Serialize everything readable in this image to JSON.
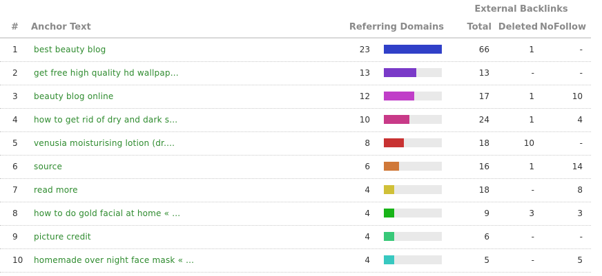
{
  "header": {
    "group": "External Backlinks",
    "num": "#",
    "anchor": "Anchor Text",
    "referring": "Referring Domains",
    "total": "Total",
    "deleted": "Deleted",
    "nofollow": "NoFollow"
  },
  "max_referring": 23,
  "rows": [
    {
      "num": "1",
      "anchor": "best beauty blog",
      "referring": 23,
      "total": "66",
      "deleted": "1",
      "nofollow": "-",
      "color": "#3040c8"
    },
    {
      "num": "2",
      "anchor": "get free high quality hd wallpap...",
      "referring": 13,
      "total": "13",
      "deleted": "-",
      "nofollow": "-",
      "color": "#7a3ac8"
    },
    {
      "num": "3",
      "anchor": "beauty blog online",
      "referring": 12,
      "total": "17",
      "deleted": "1",
      "nofollow": "10",
      "color": "#c03ec8"
    },
    {
      "num": "4",
      "anchor": "how to get rid of dry and dark s...",
      "referring": 10,
      "total": "24",
      "deleted": "1",
      "nofollow": "4",
      "color": "#c83a88"
    },
    {
      "num": "5",
      "anchor": "venusia moisturising lotion (dr....",
      "referring": 8,
      "total": "18",
      "deleted": "10",
      "nofollow": "-",
      "color": "#c83232"
    },
    {
      "num": "6",
      "anchor": "source",
      "referring": 6,
      "total": "16",
      "deleted": "1",
      "nofollow": "14",
      "color": "#d07838"
    },
    {
      "num": "7",
      "anchor": "read more",
      "referring": 4,
      "total": "18",
      "deleted": "-",
      "nofollow": "8",
      "color": "#d0c038"
    },
    {
      "num": "8",
      "anchor": "how to do gold facial at home « ...",
      "referring": 4,
      "total": "9",
      "deleted": "3",
      "nofollow": "3",
      "color": "#18b418"
    },
    {
      "num": "9",
      "anchor": "picture credit",
      "referring": 4,
      "total": "6",
      "deleted": "-",
      "nofollow": "-",
      "color": "#38c878"
    },
    {
      "num": "10",
      "anchor": "homemade over night face mask « ...",
      "referring": 4,
      "total": "5",
      "deleted": "-",
      "nofollow": "5",
      "color": "#38c8c0"
    }
  ]
}
